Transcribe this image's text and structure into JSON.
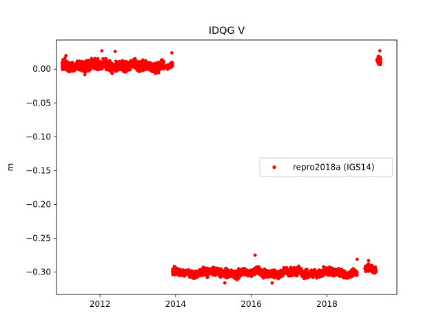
{
  "chart_data": {
    "type": "scatter",
    "title": "IDQG V",
    "xlabel": "",
    "ylabel": "m",
    "xlim": [
      2010.85,
      2019.85
    ],
    "ylim": [
      -0.333,
      0.043
    ],
    "x_ticks": [
      2012,
      2014,
      2016,
      2018
    ],
    "x_tick_labels": [
      "2012",
      "2014",
      "2016",
      "2018"
    ],
    "y_ticks": [
      0.0,
      -0.05,
      -0.1,
      -0.15,
      -0.2,
      -0.25,
      -0.3
    ],
    "y_tick_labels": [
      "0.00",
      "−0.05",
      "−0.10",
      "−0.15",
      "−0.20",
      "−0.25",
      "−0.30"
    ],
    "legend_position": "center-right",
    "grid": false,
    "series": [
      {
        "name": "repro2018a (IGS14)",
        "color": "#ff0000",
        "segments": [
          {
            "x_start": 2011.0,
            "x_end": 2013.7,
            "y_center": 0.005,
            "y_spread": 0.008,
            "count": 900
          },
          {
            "x_start": 2013.75,
            "x_end": 2013.92,
            "y_center": 0.004,
            "y_spread": 0.005,
            "count": 40
          },
          {
            "x_start": 2013.92,
            "x_end": 2018.8,
            "y_center": -0.301,
            "y_spread": 0.006,
            "count": 1700
          },
          {
            "x_start": 2019.0,
            "x_end": 2019.3,
            "y_center": -0.297,
            "y_spread": 0.006,
            "count": 80
          },
          {
            "x_start": 2019.32,
            "x_end": 2019.42,
            "y_center": 0.013,
            "y_spread": 0.007,
            "count": 40
          }
        ],
        "outliers": [
          {
            "x": 2011.1,
            "y": 0.02
          },
          {
            "x": 2011.6,
            "y": -0.008
          },
          {
            "x": 2012.05,
            "y": 0.027
          },
          {
            "x": 2012.4,
            "y": 0.026
          },
          {
            "x": 2013.9,
            "y": 0.024
          },
          {
            "x": 2016.1,
            "y": -0.275
          },
          {
            "x": 2016.55,
            "y": -0.316
          },
          {
            "x": 2015.3,
            "y": -0.316
          },
          {
            "x": 2018.8,
            "y": -0.281
          },
          {
            "x": 2019.1,
            "y": -0.283
          },
          {
            "x": 2019.4,
            "y": 0.027
          }
        ]
      }
    ]
  }
}
